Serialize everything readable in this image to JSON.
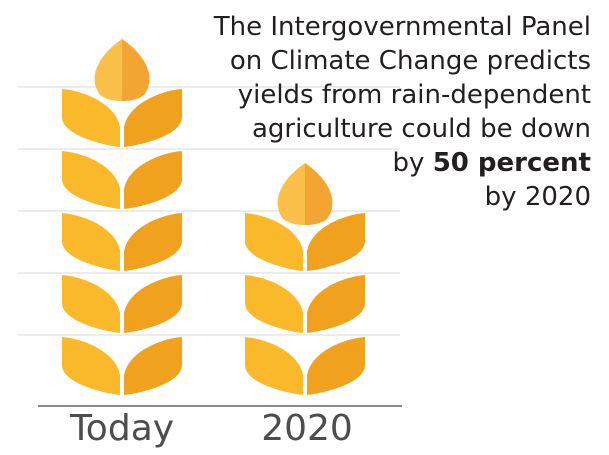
{
  "caption": {
    "lines": [
      "The Intergovernmental Panel",
      "on Climate Change predicts",
      "yields from rain-dependent",
      "agriculture could be down"
    ],
    "line5_prefix": "by ",
    "line5_bold": "50 percent",
    "line6": "by 2020"
  },
  "chart_data": {
    "type": "bar",
    "categories": [
      "Today",
      "2020"
    ],
    "values": [
      100,
      50
    ],
    "unit": "yield (relative)",
    "grid": true,
    "colors": {
      "grain_light": "#f9b92b",
      "grain_dark": "#f0a21e",
      "top_light": "#fbc04a",
      "top_dark": "#f2a533",
      "grid": "#d9d9d9",
      "axis": "#8c8c8c"
    }
  }
}
